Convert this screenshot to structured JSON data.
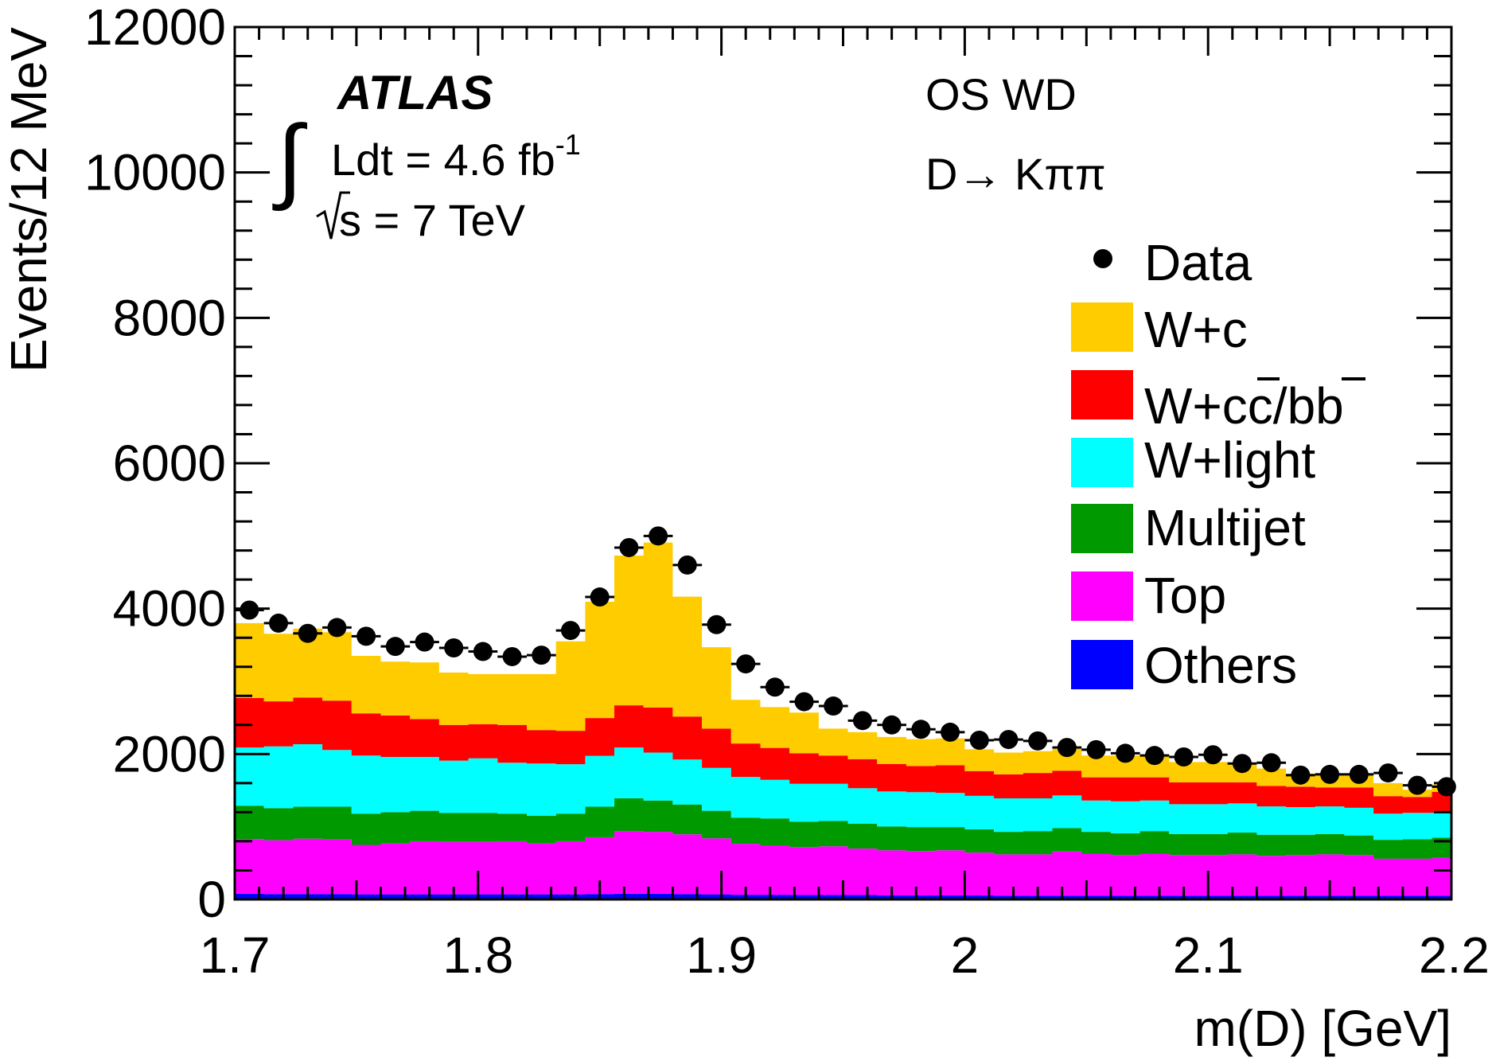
{
  "chart_data": {
    "type": "bar",
    "stacked": true,
    "title": "",
    "xlabel": "m(D) [GeV]",
    "ylabel": "Events/12 MeV",
    "xlim": [
      1.7,
      2.2
    ],
    "ylim": [
      0,
      12000
    ],
    "x_ticks": [
      1.7,
      1.8,
      1.9,
      2.0,
      2.1,
      2.2
    ],
    "x_tick_labels": [
      "1.7",
      "1.8",
      "1.9",
      "2",
      "2.1",
      "2.2"
    ],
    "y_ticks": [
      0,
      2000,
      4000,
      6000,
      8000,
      10000,
      12000
    ],
    "y_tick_labels": [
      "0",
      "2000",
      "4000",
      "6000",
      "8000",
      "10000",
      "12000"
    ],
    "bin_width": 0.012,
    "bin_centers": [
      1.706,
      1.718,
      1.73,
      1.742,
      1.754,
      1.766,
      1.778,
      1.79,
      1.802,
      1.814,
      1.826,
      1.838,
      1.85,
      1.862,
      1.874,
      1.886,
      1.898,
      1.91,
      1.922,
      1.934,
      1.946,
      1.958,
      1.97,
      1.982,
      1.994,
      2.006,
      2.018,
      2.03,
      2.042,
      2.054,
      2.066,
      2.078,
      2.09,
      2.102,
      2.114,
      2.126,
      2.138,
      2.15,
      2.162,
      2.174,
      2.186,
      2.198
    ],
    "series": [
      {
        "name": "Others",
        "color": "#0000ff",
        "values": [
          80,
          75,
          75,
          75,
          70,
          70,
          70,
          70,
          70,
          70,
          70,
          70,
          75,
          80,
          80,
          75,
          70,
          65,
          65,
          60,
          60,
          60,
          55,
          55,
          55,
          55,
          50,
          50,
          50,
          50,
          50,
          50,
          50,
          50,
          50,
          50,
          50,
          50,
          50,
          50,
          50,
          50
        ]
      },
      {
        "name": "Top",
        "color": "#ff00ff",
        "values": [
          750,
          740,
          760,
          750,
          680,
          700,
          730,
          720,
          720,
          730,
          700,
          730,
          780,
          860,
          850,
          820,
          770,
          700,
          680,
          660,
          670,
          640,
          620,
          610,
          620,
          590,
          570,
          570,
          610,
          580,
          560,
          580,
          560,
          560,
          570,
          550,
          560,
          570,
          560,
          510,
          510,
          520
        ]
      },
      {
        "name": "Multijet",
        "color": "#009900",
        "values": [
          460,
          440,
          440,
          450,
          430,
          430,
          420,
          400,
          400,
          380,
          380,
          380,
          420,
          450,
          430,
          410,
          380,
          360,
          370,
          350,
          350,
          340,
          330,
          330,
          320,
          320,
          310,
          320,
          320,
          300,
          300,
          310,
          290,
          290,
          300,
          290,
          280,
          280,
          270,
          260,
          270,
          280
        ]
      },
      {
        "name": "W+light",
        "color": "#00ffff",
        "values": [
          800,
          850,
          860,
          780,
          800,
          760,
          740,
          720,
          750,
          700,
          720,
          680,
          700,
          700,
          660,
          620,
          590,
          560,
          530,
          520,
          510,
          490,
          480,
          480,
          470,
          460,
          460,
          450,
          450,
          430,
          440,
          420,
          410,
          410,
          400,
          390,
          380,
          380,
          380,
          360,
          360,
          340
        ]
      },
      {
        "name": "W+cc/bb",
        "color": "#ff0000",
        "values": [
          680,
          620,
          640,
          680,
          580,
          570,
          520,
          490,
          470,
          520,
          460,
          460,
          520,
          580,
          620,
          590,
          540,
          460,
          440,
          420,
          390,
          400,
          380,
          360,
          380,
          340,
          330,
          350,
          340,
          320,
          330,
          320,
          300,
          300,
          290,
          280,
          280,
          260,
          280,
          240,
          220,
          290
        ]
      },
      {
        "name": "W+c",
        "color": "#ffcc00",
        "values": [
          1030,
          930,
          950,
          940,
          790,
          740,
          780,
          720,
          690,
          700,
          770,
          1230,
          1600,
          2060,
          2270,
          1650,
          1120,
          600,
          560,
          560,
          370,
          370,
          370,
          370,
          370,
          300,
          300,
          300,
          300,
          300,
          300,
          300,
          280,
          280,
          250,
          240,
          180,
          190,
          180,
          180,
          100,
          100
        ]
      }
    ],
    "data_points": {
      "name": "Data",
      "values": [
        3980,
        3800,
        3660,
        3740,
        3620,
        3480,
        3540,
        3460,
        3410,
        3340,
        3360,
        3700,
        4160,
        4840,
        5000,
        4600,
        3780,
        3240,
        2920,
        2720,
        2660,
        2460,
        2400,
        2340,
        2300,
        2190,
        2200,
        2180,
        2090,
        2060,
        2010,
        1980,
        1960,
        1990,
        1870,
        1880,
        1710,
        1720,
        1720,
        1740,
        1570,
        1550
      ]
    },
    "legend": {
      "position": "right",
      "entries": [
        {
          "label": "Data",
          "type": "marker"
        },
        {
          "label": "W+c",
          "type": "fill",
          "color": "#ffcc00"
        },
        {
          "label": "W+cc/bb",
          "type": "fill",
          "color": "#ff0000"
        },
        {
          "label": "W+light",
          "type": "fill",
          "color": "#00ffff"
        },
        {
          "label": "Multijet",
          "type": "fill",
          "color": "#009900"
        },
        {
          "label": "Top",
          "type": "fill",
          "color": "#ff00ff"
        },
        {
          "label": "Others",
          "type": "fill",
          "color": "#0000ff"
        }
      ]
    },
    "annotations": {
      "experiment": "ATLAS",
      "luminosity": "Ldt = 4.6 fb",
      "luminosity_exponent": "-1",
      "energy": "s = 7 TeV",
      "selection": "OS WD",
      "decay": "D→ Kππ"
    }
  }
}
